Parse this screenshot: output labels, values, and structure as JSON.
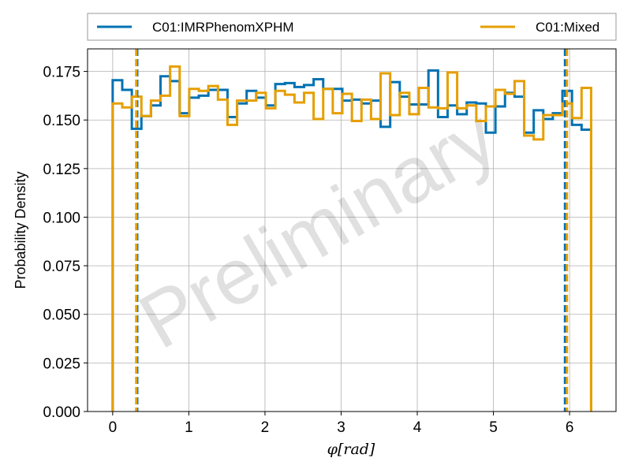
{
  "chart_data": {
    "type": "histogram",
    "xlabel": "φ[rad]",
    "ylabel": "Probability Density",
    "xlim": [
      -0.33,
      6.61
    ],
    "ylim": [
      0,
      0.1866
    ],
    "xticks": [
      0,
      1,
      2,
      3,
      4,
      5,
      6
    ],
    "yticks": [
      0.0,
      0.025,
      0.05,
      0.075,
      0.1,
      0.125,
      0.15,
      0.175
    ],
    "grid": true,
    "legend_placement": "top, outside plot, two columns",
    "watermark": "Preliminary",
    "bin_edges": [
      0.0,
      0.1257,
      0.2513,
      0.377,
      0.5027,
      0.6283,
      0.754,
      0.8796,
      1.0053,
      1.131,
      1.2566,
      1.3823,
      1.508,
      1.6336,
      1.7593,
      1.885,
      2.0106,
      2.1363,
      2.2619,
      2.3876,
      2.5133,
      2.6389,
      2.7646,
      2.8903,
      3.0159,
      3.1416,
      3.2673,
      3.3929,
      3.5186,
      3.6442,
      3.7699,
      3.8956,
      4.0212,
      4.1469,
      4.2726,
      4.3982,
      4.5239,
      4.6496,
      4.7752,
      4.9009,
      5.0265,
      5.1522,
      5.2779,
      5.4035,
      5.5292,
      5.6549,
      5.7805,
      5.9062,
      6.0319,
      6.1575,
      6.2832
    ],
    "series": [
      {
        "name": "C01:IMRPhenomXPHM",
        "color": "#0072b2",
        "values": [
          0.1705,
          0.1655,
          0.1455,
          0.152,
          0.1575,
          0.1725,
          0.17,
          0.1535,
          0.1615,
          0.1625,
          0.1655,
          0.1655,
          0.1515,
          0.1585,
          0.165,
          0.1615,
          0.1575,
          0.1685,
          0.169,
          0.167,
          0.168,
          0.171,
          0.166,
          0.166,
          0.16,
          0.1605,
          0.1585,
          0.16,
          0.1465,
          0.1695,
          0.162,
          0.158,
          0.158,
          0.1755,
          0.1515,
          0.1575,
          0.153,
          0.159,
          0.1585,
          0.1435,
          0.157,
          0.164,
          0.162,
          0.1435,
          0.155,
          0.1505,
          0.1535,
          0.165,
          0.1475,
          0.145
        ],
        "credible_interval": [
          0.322,
          5.94
        ]
      },
      {
        "name": "C01:Mixed",
        "color": "#e69f00",
        "values": [
          0.1585,
          0.1565,
          0.162,
          0.152,
          0.16,
          0.1625,
          0.1775,
          0.152,
          0.166,
          0.165,
          0.1675,
          0.1605,
          0.1475,
          0.16,
          0.16,
          0.164,
          0.156,
          0.165,
          0.163,
          0.159,
          0.164,
          0.1505,
          0.166,
          0.1535,
          0.1635,
          0.1495,
          0.1605,
          0.1505,
          0.174,
          0.1525,
          0.164,
          0.153,
          0.1665,
          0.1565,
          0.156,
          0.1745,
          0.156,
          0.1575,
          0.1495,
          0.157,
          0.1655,
          0.1635,
          0.17,
          0.142,
          0.14,
          0.1525,
          0.1525,
          0.1585,
          0.151,
          0.1665
        ],
        "credible_interval": [
          0.31,
          5.965
        ]
      }
    ]
  }
}
